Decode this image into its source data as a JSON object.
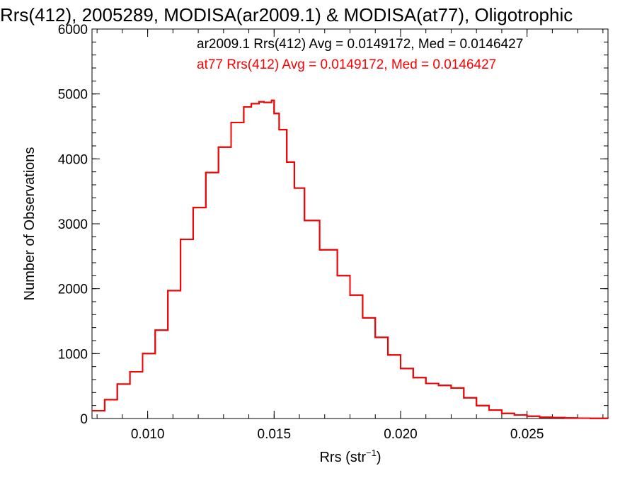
{
  "chart_data": {
    "type": "line",
    "title": "Rrs(412), 2005289, MODISA(ar2009.1) & MODISA(at77), Oligotrophic",
    "xlabel": "Rrs (str",
    "xlabel_sup": "−1",
    "xlabel_end": ")",
    "ylabel": "Number of Observations",
    "xlim": [
      0.0078,
      0.0282
    ],
    "ylim": [
      0,
      6000
    ],
    "x_ticks": [
      {
        "value": 0.01,
        "label": "0.010"
      },
      {
        "value": 0.015,
        "label": "0.015"
      },
      {
        "value": 0.02,
        "label": "0.020"
      },
      {
        "value": 0.025,
        "label": "0.025"
      }
    ],
    "y_ticks": [
      {
        "value": 0,
        "label": "0"
      },
      {
        "value": 1000,
        "label": "1000"
      },
      {
        "value": 2000,
        "label": "2000"
      },
      {
        "value": 3000,
        "label": "3000"
      },
      {
        "value": 4000,
        "label": "4000"
      },
      {
        "value": 5000,
        "label": "5000"
      },
      {
        "value": 6000,
        "label": "6000"
      }
    ],
    "grid": false,
    "legend_position": "top-right",
    "series": [
      {
        "name": "ar2009.1 Rrs(412) Avg = 0.0149172, Med = 0.0146427",
        "color": "#000000",
        "step": true,
        "x": [
          0.0078,
          0.0083,
          0.0088,
          0.0093,
          0.0098,
          0.0103,
          0.0108,
          0.0113,
          0.0118,
          0.0123,
          0.0128,
          0.0133,
          0.0138,
          0.0141,
          0.0144,
          0.0146,
          0.0149,
          0.015,
          0.0152,
          0.0155,
          0.0158,
          0.0162,
          0.0168,
          0.0175,
          0.018,
          0.0185,
          0.019,
          0.0195,
          0.02,
          0.0205,
          0.021,
          0.0215,
          0.022,
          0.0225,
          0.023,
          0.0235,
          0.024,
          0.0245,
          0.025,
          0.0255,
          0.026,
          0.0265,
          0.027,
          0.0275,
          0.0282
        ],
        "values": [
          120,
          290,
          530,
          720,
          1000,
          1360,
          1970,
          2760,
          3250,
          3790,
          4180,
          4560,
          4800,
          4850,
          4880,
          4870,
          4900,
          4700,
          4450,
          3950,
          3550,
          3050,
          2600,
          2200,
          1900,
          1550,
          1250,
          980,
          770,
          630,
          540,
          510,
          470,
          320,
          200,
          130,
          80,
          55,
          35,
          20,
          14,
          8,
          5,
          3,
          2
        ]
      },
      {
        "name": "at77 Rrs(412) Avg = 0.0149172, Med = 0.0146427",
        "color": "#ff0000",
        "step": true,
        "x": [
          0.0078,
          0.0083,
          0.0088,
          0.0093,
          0.0098,
          0.0103,
          0.0108,
          0.0113,
          0.0118,
          0.0123,
          0.0128,
          0.0133,
          0.0138,
          0.0141,
          0.0144,
          0.0146,
          0.0149,
          0.015,
          0.0152,
          0.0155,
          0.0158,
          0.0162,
          0.0168,
          0.0175,
          0.018,
          0.0185,
          0.019,
          0.0195,
          0.02,
          0.0205,
          0.021,
          0.0215,
          0.022,
          0.0225,
          0.023,
          0.0235,
          0.024,
          0.0245,
          0.025,
          0.0255,
          0.026,
          0.0265,
          0.027,
          0.0275,
          0.0282
        ],
        "values": [
          120,
          290,
          530,
          720,
          1000,
          1360,
          1970,
          2760,
          3250,
          3790,
          4180,
          4560,
          4800,
          4850,
          4880,
          4870,
          4900,
          4700,
          4450,
          3950,
          3550,
          3050,
          2600,
          2200,
          1900,
          1550,
          1250,
          980,
          770,
          630,
          540,
          510,
          470,
          320,
          200,
          130,
          80,
          55,
          35,
          20,
          14,
          8,
          5,
          3,
          2
        ]
      }
    ]
  }
}
